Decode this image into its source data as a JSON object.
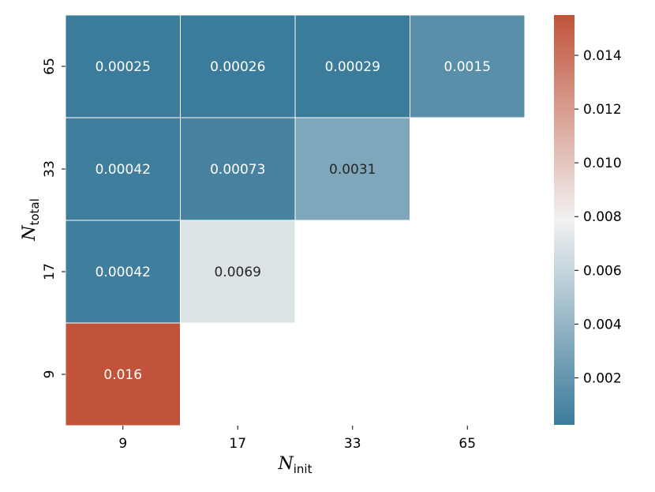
{
  "chart_data": {
    "type": "heatmap",
    "title": "",
    "xlabel": {
      "main": "N",
      "sub": "init"
    },
    "ylabel": {
      "main": "N",
      "sub": "total"
    },
    "x_categories": [
      "9",
      "17",
      "33",
      "65"
    ],
    "y_categories": [
      "65",
      "33",
      "17",
      "9"
    ],
    "cells": [
      {
        "y": "65",
        "x": "9",
        "value": 0.00025,
        "label": "0.00025"
      },
      {
        "y": "65",
        "x": "17",
        "value": 0.00026,
        "label": "0.00026"
      },
      {
        "y": "65",
        "x": "33",
        "value": 0.00029,
        "label": "0.00029"
      },
      {
        "y": "65",
        "x": "65",
        "value": 0.0015,
        "label": "0.0015"
      },
      {
        "y": "33",
        "x": "9",
        "value": 0.00042,
        "label": "0.00042"
      },
      {
        "y": "33",
        "x": "17",
        "value": 0.00073,
        "label": "0.00073"
      },
      {
        "y": "33",
        "x": "33",
        "value": 0.0031,
        "label": "0.0031"
      },
      {
        "y": "17",
        "x": "9",
        "value": 0.00042,
        "label": "0.00042"
      },
      {
        "y": "17",
        "x": "17",
        "value": 0.0069,
        "label": "0.0069"
      },
      {
        "y": "9",
        "x": "9",
        "value": 0.016,
        "label": "0.016"
      }
    ],
    "colorbar": {
      "range": [
        0.00025,
        0.0155
      ],
      "ticks": [
        0.002,
        0.004,
        0.006,
        0.008,
        0.01,
        0.012,
        0.014
      ],
      "tick_labels": [
        "0.002",
        "0.004",
        "0.006",
        "0.008",
        "0.010",
        "0.012",
        "0.014"
      ],
      "low_color": "#3b7b9b",
      "mid_color": "#f2f2f2",
      "high_color": "#c1533a"
    }
  }
}
